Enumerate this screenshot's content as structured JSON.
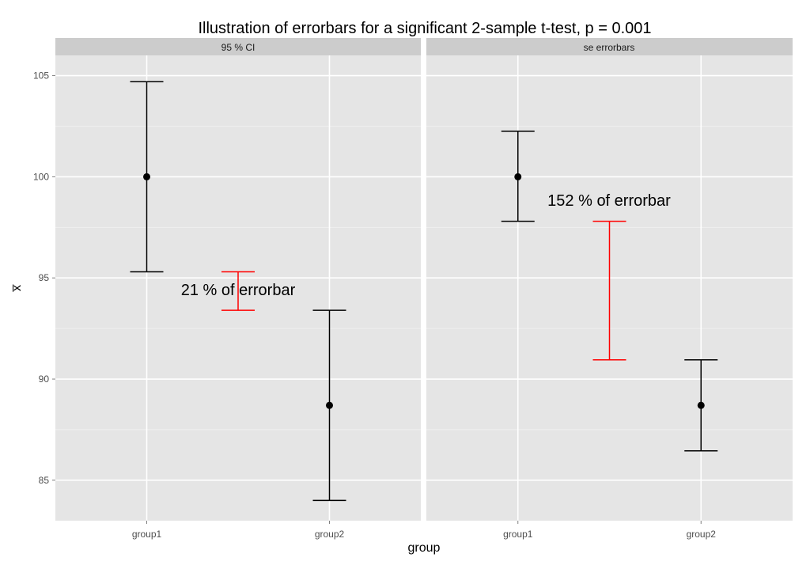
{
  "chart_data": {
    "type": "errorbar",
    "title": "Illustration of errorbars for a significant 2-sample t-test, p = 0.001",
    "xlabel": "group",
    "ylabel": "x̅",
    "categories": [
      "group1",
      "group2"
    ],
    "ylim": [
      83,
      106
    ],
    "yticks": [
      "85",
      "90",
      "95",
      "100",
      "105"
    ],
    "grid": true,
    "panels": [
      {
        "strip": "95 % CI",
        "points": [
          {
            "group": "group1",
            "mean": 100.0,
            "lower": 95.3,
            "upper": 104.7
          },
          {
            "group": "group2",
            "mean": 88.7,
            "lower": 84.0,
            "upper": 93.4
          }
        ],
        "gap_bar": {
          "lower": 93.4,
          "upper": 95.3,
          "color": "#ff0000"
        },
        "annotation": "21 % of errorbar"
      },
      {
        "strip": "se errorbars",
        "points": [
          {
            "group": "group1",
            "mean": 100.0,
            "lower": 97.8,
            "upper": 102.25
          },
          {
            "group": "group2",
            "mean": 88.7,
            "lower": 86.45,
            "upper": 90.95
          }
        ],
        "gap_bar": {
          "lower": 90.95,
          "upper": 97.8,
          "color": "#ff0000"
        },
        "annotation": "152 % of errorbar"
      }
    ]
  }
}
